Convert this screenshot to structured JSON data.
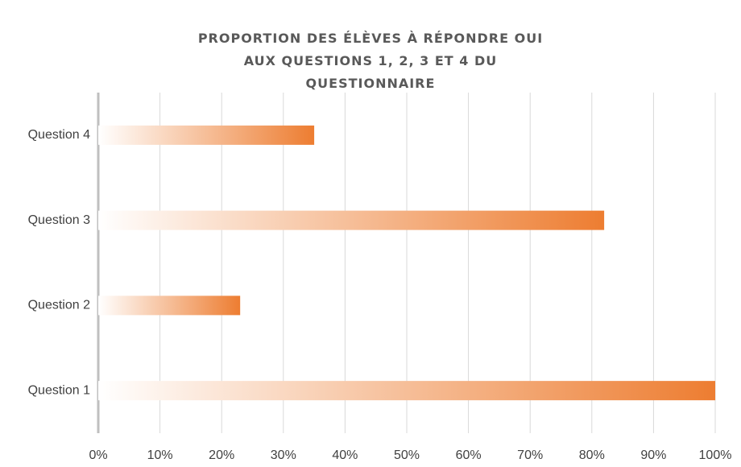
{
  "chart_data": {
    "type": "bar",
    "orientation": "horizontal",
    "title": "PROPORTION DES ÉLÈVES À RÉPONDRE OUI AUX QUESTIONS 1, 2, 3 ET 4 DU QUESTIONNAIRE",
    "categories": [
      "Question 1",
      "Question 2",
      "Question 3",
      "Question 4"
    ],
    "values": [
      100,
      23,
      82,
      35
    ],
    "color": "#ed7d31",
    "xlim": [
      0,
      100
    ],
    "xticks": [
      {
        "value": 0,
        "label": "0%"
      },
      {
        "value": 10,
        "label": "10%"
      },
      {
        "value": 20,
        "label": "20%"
      },
      {
        "value": 30,
        "label": "30%"
      },
      {
        "value": 40,
        "label": "40%"
      },
      {
        "value": 50,
        "label": "50%"
      },
      {
        "value": 60,
        "label": "60%"
      },
      {
        "value": 70,
        "label": "70%"
      },
      {
        "value": 80,
        "label": "80%"
      },
      {
        "value": 90,
        "label": "90%"
      },
      {
        "value": 100,
        "label": "100%"
      }
    ],
    "grid": true
  }
}
